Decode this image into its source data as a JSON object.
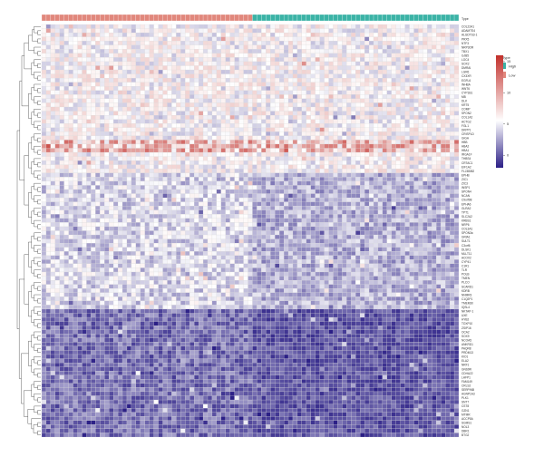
{
  "chart_data": {
    "type": "heatmap",
    "annotation": {
      "title": "Type",
      "levels": [
        {
          "name": "High",
          "color": "#3bb3a6"
        },
        {
          "name": "Low",
          "color": "#e1877c"
        }
      ],
      "n_low": 47,
      "n_high": 46
    },
    "colorbar": {
      "ticks": [
        15,
        10,
        5,
        0
      ],
      "colors": [
        "#2b1f86",
        "#ffffff",
        "#c2302b"
      ],
      "range": [
        -2,
        16
      ]
    },
    "rows": [
      "COL22A1",
      "ADAMTS4",
      "ALGDTS3-1",
      "PRX5",
      "NTF3",
      "NRP3OR",
      "TBX1",
      "GJB5",
      "LOC4",
      "SOX2",
      "DMRAI",
      "LGR6",
      "CX3XR",
      "EGFL6",
      "INHBA",
      "WNT6",
      "CYP1B1",
      "MB",
      "DLK",
      "KRT5",
      "COMP",
      "SPON2",
      "COL1A2",
      "ACTG2",
      "FGL1",
      "DKPP1",
      "CRISPLD",
      "GIGA",
      "HBB",
      "HBA2",
      "HBA1",
      "IRGA1F",
      "THBS4",
      "CRTAC1",
      "EIF1A2",
      "FLJ38082",
      "EPHB",
      "ZIC1",
      "ZIC3",
      "INSP1",
      "SPON4",
      "NCAN",
      "C9orf98",
      "EPHA6",
      "GLRA2",
      "TPT1",
      "SLC2A2",
      "KRBS1",
      "NRP6",
      "COL3A1",
      "SPON3a",
      "GRIA1",
      "SULT1",
      "C3orf6",
      "DLSK1",
      "MLLT11",
      "ACOX2",
      "CYP41",
      "C1R1",
      "TLR",
      "POLB",
      "TMEN",
      "PLCO",
      "SCARD1",
      "KDRB",
      "NNMR3",
      "C1Q2P1",
      "TMEM30",
      "IQSL4",
      "NKTAP-1",
      "UXE",
      "HYB2",
      "TOXP10",
      "ZSIP16",
      "OCA2",
      "SOX9",
      "NCOA5",
      "ANKRD1",
      "PAQR8",
      "PRDM13",
      "KIO1",
      "ELA2",
      "NRF1",
      "GNS9R",
      "CDHA22",
      "LHFP1",
      "FAM149",
      "CRLS2",
      "SERPINB",
      "AGNP1A3",
      "PLK1",
      "SNT7",
      "CST8",
      "GZN1",
      "MTMR",
      "ACCP5A",
      "SGMS1",
      "NOL3",
      "DBR1",
      "BTG2"
    ]
  }
}
